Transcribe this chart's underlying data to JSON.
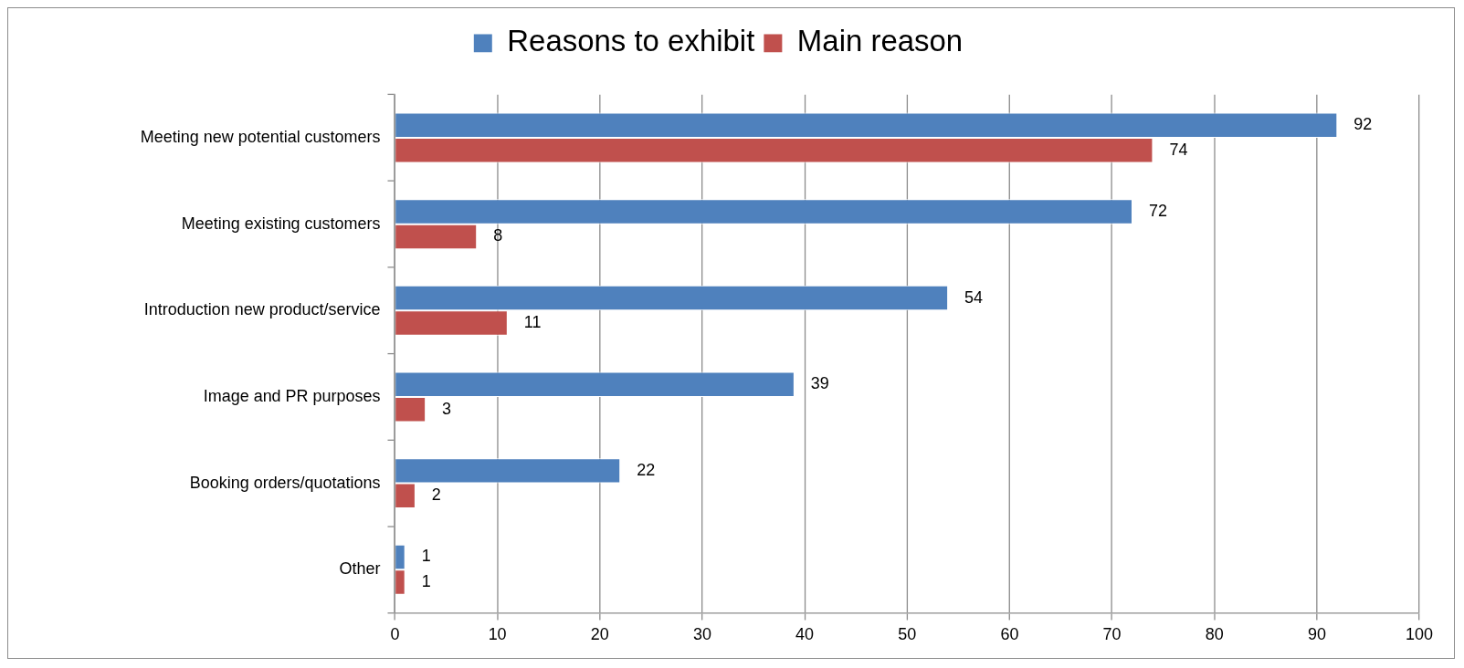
{
  "chart_data": {
    "type": "bar",
    "orientation": "horizontal",
    "categories": [
      "Meeting new potential customers",
      "Meeting existing customers",
      "Introduction new product/service",
      "Image and PR purposes",
      "Booking orders/quotations",
      "Other"
    ],
    "series": [
      {
        "name": "Reasons to exhibit",
        "color": "#4f81bd",
        "values": [
          92,
          72,
          54,
          39,
          22,
          1
        ]
      },
      {
        "name": "Main reason",
        "color": "#c0504d",
        "values": [
          74,
          8,
          11,
          3,
          2,
          1
        ]
      }
    ],
    "xlim": [
      0,
      100
    ],
    "xticks": [
      0,
      10,
      20,
      30,
      40,
      50,
      60,
      70,
      80,
      90,
      100
    ],
    "grid": "x",
    "legend": "top",
    "data_labels": true
  }
}
